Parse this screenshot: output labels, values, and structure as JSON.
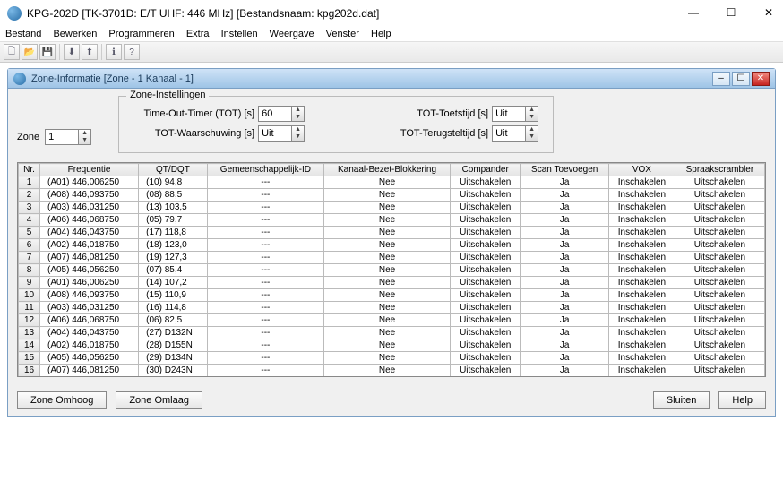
{
  "app": {
    "title": "KPG-202D [TK-3701D: E/T UHF: 446 MHz] [Bestandsnaam: kpg202d.dat]"
  },
  "winbtns": {
    "min": "—",
    "max": "☐",
    "close": "✕"
  },
  "menu": [
    "Bestand",
    "Bewerken",
    "Programmeren",
    "Extra",
    "Instellen",
    "Weergave",
    "Venster",
    "Help"
  ],
  "sub": {
    "title": "Zone-Informatie [Zone - 1   Kanaal  -  1]"
  },
  "zone": {
    "label": "Zone",
    "value": "1"
  },
  "fieldset": {
    "legend": "Zone-Instellingen",
    "tot": {
      "label": "Time-Out-Timer (TOT) [s]",
      "value": "60"
    },
    "tot_toets": {
      "label": "TOT-Toetstijd [s]",
      "value": "Uit"
    },
    "tot_warn": {
      "label": "TOT-Waarschuwing [s]",
      "value": "Uit"
    },
    "tot_terug": {
      "label": "TOT-Terugsteltijd [s]",
      "value": "Uit"
    }
  },
  "columns": [
    "Nr.",
    "Frequentie",
    "QT/DQT",
    "Gemeenschappelijk-ID",
    "Kanaal-Bezet-Blokkering",
    "Compander",
    "Scan Toevoegen",
    "VOX",
    "Spraakscrambler"
  ],
  "rows": [
    {
      "nr": "1",
      "freq": "(A01)  446,006250",
      "qt": "(10)  94,8",
      "gid": "---",
      "kbb": "Nee",
      "comp": "Uitschakelen",
      "scan": "Ja",
      "vox": "Inschakelen",
      "scr": "Uitschakelen"
    },
    {
      "nr": "2",
      "freq": "(A08)  446,093750",
      "qt": "(08)  88,5",
      "gid": "---",
      "kbb": "Nee",
      "comp": "Uitschakelen",
      "scan": "Ja",
      "vox": "Inschakelen",
      "scr": "Uitschakelen"
    },
    {
      "nr": "3",
      "freq": "(A03)  446,031250",
      "qt": "(13)  103,5",
      "gid": "---",
      "kbb": "Nee",
      "comp": "Uitschakelen",
      "scan": "Ja",
      "vox": "Inschakelen",
      "scr": "Uitschakelen"
    },
    {
      "nr": "4",
      "freq": "(A06)  446,068750",
      "qt": "(05)  79,7",
      "gid": "---",
      "kbb": "Nee",
      "comp": "Uitschakelen",
      "scan": "Ja",
      "vox": "Inschakelen",
      "scr": "Uitschakelen"
    },
    {
      "nr": "5",
      "freq": "(A04)  446,043750",
      "qt": "(17)  118,8",
      "gid": "---",
      "kbb": "Nee",
      "comp": "Uitschakelen",
      "scan": "Ja",
      "vox": "Inschakelen",
      "scr": "Uitschakelen"
    },
    {
      "nr": "6",
      "freq": "(A02)  446,018750",
      "qt": "(18)  123,0",
      "gid": "---",
      "kbb": "Nee",
      "comp": "Uitschakelen",
      "scan": "Ja",
      "vox": "Inschakelen",
      "scr": "Uitschakelen"
    },
    {
      "nr": "7",
      "freq": "(A07)  446,081250",
      "qt": "(19)  127,3",
      "gid": "---",
      "kbb": "Nee",
      "comp": "Uitschakelen",
      "scan": "Ja",
      "vox": "Inschakelen",
      "scr": "Uitschakelen"
    },
    {
      "nr": "8",
      "freq": "(A05)  446,056250",
      "qt": "(07)  85,4",
      "gid": "---",
      "kbb": "Nee",
      "comp": "Uitschakelen",
      "scan": "Ja",
      "vox": "Inschakelen",
      "scr": "Uitschakelen"
    },
    {
      "nr": "9",
      "freq": "(A01)  446,006250",
      "qt": "(14)  107,2",
      "gid": "---",
      "kbb": "Nee",
      "comp": "Uitschakelen",
      "scan": "Ja",
      "vox": "Inschakelen",
      "scr": "Uitschakelen"
    },
    {
      "nr": "10",
      "freq": "(A08)  446,093750",
      "qt": "(15)  110,9",
      "gid": "---",
      "kbb": "Nee",
      "comp": "Uitschakelen",
      "scan": "Ja",
      "vox": "Inschakelen",
      "scr": "Uitschakelen"
    },
    {
      "nr": "11",
      "freq": "(A03)  446,031250",
      "qt": "(16)  114,8",
      "gid": "---",
      "kbb": "Nee",
      "comp": "Uitschakelen",
      "scan": "Ja",
      "vox": "Inschakelen",
      "scr": "Uitschakelen"
    },
    {
      "nr": "12",
      "freq": "(A06)  446,068750",
      "qt": "(06)  82,5",
      "gid": "---",
      "kbb": "Nee",
      "comp": "Uitschakelen",
      "scan": "Ja",
      "vox": "Inschakelen",
      "scr": "Uitschakelen"
    },
    {
      "nr": "13",
      "freq": "(A04)  446,043750",
      "qt": "(27)  D132N",
      "gid": "---",
      "kbb": "Nee",
      "comp": "Uitschakelen",
      "scan": "Ja",
      "vox": "Inschakelen",
      "scr": "Uitschakelen"
    },
    {
      "nr": "14",
      "freq": "(A02)  446,018750",
      "qt": "(28)  D155N",
      "gid": "---",
      "kbb": "Nee",
      "comp": "Uitschakelen",
      "scan": "Ja",
      "vox": "Inschakelen",
      "scr": "Uitschakelen"
    },
    {
      "nr": "15",
      "freq": "(A05)  446,056250",
      "qt": "(29)  D134N",
      "gid": "---",
      "kbb": "Nee",
      "comp": "Uitschakelen",
      "scan": "Ja",
      "vox": "Inschakelen",
      "scr": "Uitschakelen"
    },
    {
      "nr": "16",
      "freq": "(A07)  446,081250",
      "qt": "(30)  D243N",
      "gid": "---",
      "kbb": "Nee",
      "comp": "Uitschakelen",
      "scan": "Ja",
      "vox": "Inschakelen",
      "scr": "Uitschakelen"
    }
  ],
  "buttons": {
    "up": "Zone Omhoog",
    "down": "Zone Omlaag",
    "close": "Sluiten",
    "help": "Help"
  }
}
